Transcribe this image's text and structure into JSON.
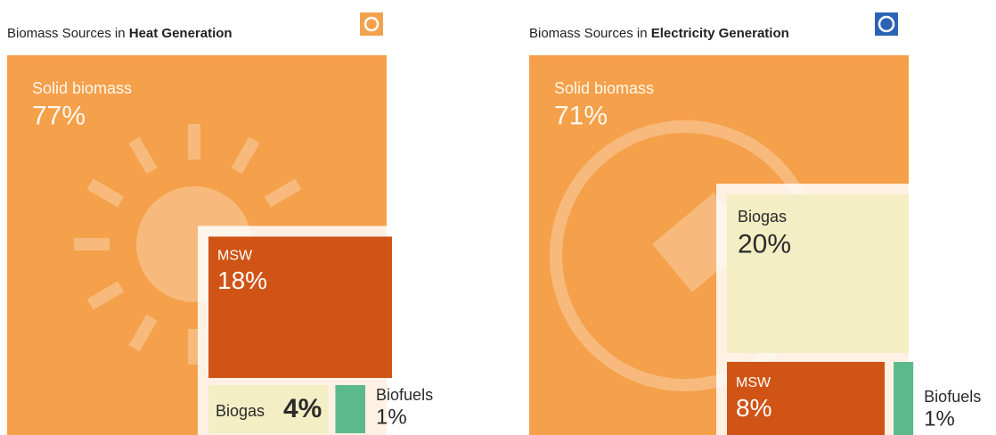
{
  "chart_data": [
    {
      "type": "area",
      "title": [
        "Biomass Sources in",
        "Heat Generation"
      ],
      "categories": [
        "Solid biomass",
        "MSW",
        "Biogas",
        "Biofuels"
      ],
      "values": [
        77,
        18,
        4,
        1
      ],
      "value_labels": [
        "77%",
        "18%",
        "4%",
        "1%"
      ],
      "colors": [
        "#f5a04a",
        "#cf5416",
        "#f3eec4",
        "#5cba8a"
      ]
    },
    {
      "type": "area",
      "title": [
        "Biomass Sources in",
        "Electricity Generation"
      ],
      "categories": [
        "Solid biomass",
        "Biogas",
        "MSW",
        "Biofuels"
      ],
      "values": [
        71,
        20,
        8,
        1
      ],
      "value_labels": [
        "71%",
        "20%",
        "8%",
        "1%"
      ],
      "colors": [
        "#f5a04a",
        "#f3eec4",
        "#cf5416",
        "#5cba8a"
      ]
    }
  ]
}
